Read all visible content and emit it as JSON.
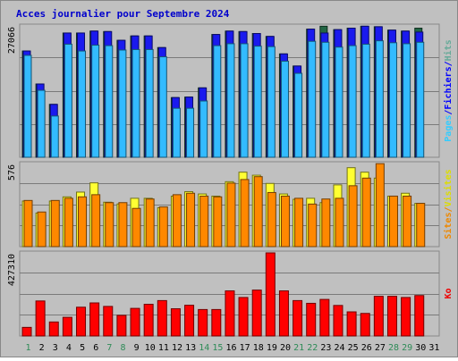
{
  "chart_data": {
    "type": "bar",
    "title": "Acces journalier pour Septembre 2024",
    "categories": [
      "1",
      "2",
      "3",
      "4",
      "5",
      "6",
      "7",
      "8",
      "9",
      "10",
      "11",
      "12",
      "13",
      "14",
      "15",
      "16",
      "17",
      "18",
      "19",
      "20",
      "21",
      "22",
      "23",
      "24",
      "25",
      "26",
      "27",
      "28",
      "29",
      "30",
      "31"
    ],
    "weekend_days": [
      "1",
      "7",
      "8",
      "14",
      "15",
      "21",
      "22",
      "28",
      "29"
    ],
    "panels": [
      {
        "id": "top",
        "ymax_label": "27066",
        "ymax": 27066,
        "axis_label_parts": [
          {
            "text": "Pages",
            "color": "#33ccff"
          },
          {
            "text": "/",
            "color": "#0000ff"
          },
          {
            "text": "Fichiers",
            "color": "#0000ff"
          },
          {
            "text": "/",
            "color": "#0000ff"
          },
          {
            "text": "Hits",
            "color": "#66aa99"
          }
        ],
        "series": [
          {
            "name": "Hits",
            "color": "#226644",
            "values": [
              21900,
              15100,
              10900,
              25600,
              25600,
              26000,
              25900,
              24100,
              25000,
              25000,
              22600,
              12300,
              12400,
              14300,
              25300,
              26000,
              25900,
              25500,
              24900,
              21300,
              18800,
              26400,
              27000,
              26300,
              26600,
              27000,
              26900,
              26200,
              26000,
              26600,
              null
            ]
          },
          {
            "name": "Fichiers",
            "color": "#1a1aee",
            "values": [
              21900,
              15100,
              10900,
              25600,
              25600,
              26000,
              25900,
              24100,
              25000,
              25000,
              22600,
              12300,
              12400,
              14300,
              25300,
              26000,
              25900,
              25500,
              24900,
              21300,
              18800,
              26400,
              25600,
              26300,
              26600,
              27000,
              26900,
              26200,
              26000,
              25800,
              null
            ]
          },
          {
            "name": "Pages",
            "color": "#33bbff",
            "values": [
              21000,
              13800,
              8500,
              23300,
              21900,
              23100,
              23000,
              22100,
              22200,
              22200,
              20700,
              10100,
              10100,
              11600,
              23000,
              23400,
              23400,
              22900,
              22800,
              19800,
              17300,
              23900,
              23700,
              22700,
              23000,
              23300,
              24000,
              23600,
              23400,
              23700,
              null
            ]
          }
        ]
      },
      {
        "id": "middle",
        "ymax_label": "576",
        "ymax": 576,
        "axis_label_parts": [
          {
            "text": "Sites",
            "color": "#ee8800"
          },
          {
            "text": "/",
            "color": "#ee8800"
          },
          {
            "text": "Visites",
            "color": "#dddd00"
          }
        ],
        "series": [
          {
            "name": "Visites",
            "color": "#ffff33",
            "values": [
              316,
              233,
              316,
              345,
              378,
              442,
              308,
              296,
              335,
              335,
              270,
              350,
              381,
              365,
              350,
              450,
              516,
              495,
              438,
              365,
              328,
              335,
              305,
              428,
              547,
              516,
              475,
              350,
              370,
              300,
              null
            ]
          },
          {
            "name": "Sites",
            "color": "#ff8800",
            "values": [
              320,
              240,
              320,
              335,
              345,
              360,
              305,
              305,
              265,
              330,
              275,
              360,
              370,
              350,
              345,
              440,
              465,
              485,
              375,
              350,
              335,
              295,
              330,
              335,
              422,
              475,
              575,
              350,
              350,
              300,
              null
            ]
          }
        ]
      },
      {
        "id": "bottom",
        "ymax_label": "427310",
        "ymax": 427310,
        "axis_label_parts": [
          {
            "text": "Ko",
            "color": "#ee0000"
          }
        ],
        "series": [
          {
            "name": "Ko",
            "color": "#ff0000",
            "values": [
              44300,
              180000,
              72000,
              96000,
              148000,
              170000,
              152000,
              106000,
              142000,
              163000,
              182000,
              140000,
              158000,
              136000,
              136000,
              232000,
              198000,
              236000,
              427310,
              232000,
              182000,
              168000,
              188000,
              157000,
              124000,
              116000,
              204000,
              204000,
              198000,
              208000,
              null
            ]
          }
        ]
      }
    ]
  }
}
